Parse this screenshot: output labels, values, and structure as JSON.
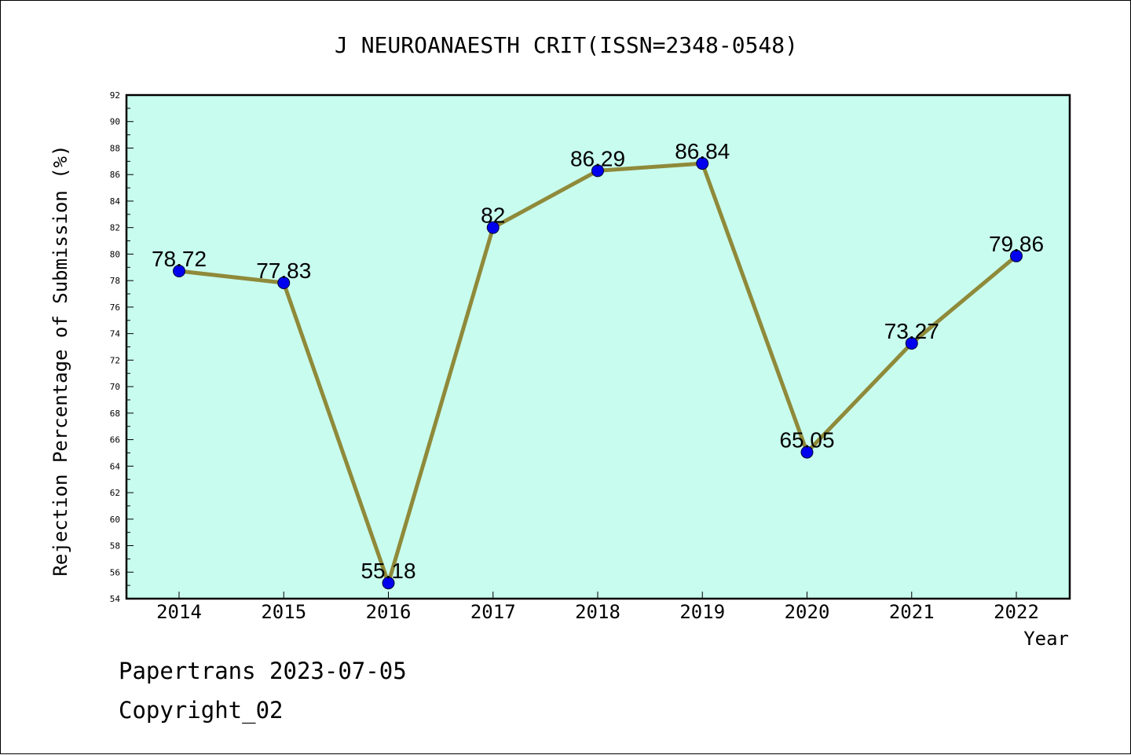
{
  "chart_data": {
    "type": "line",
    "title": "J NEUROANAESTH CRIT(ISSN=2348-0548)",
    "xlabel": "Year",
    "ylabel": "Rejection Percentage of Submission (%)",
    "categories": [
      "2014",
      "2015",
      "2016",
      "2017",
      "2018",
      "2019",
      "2020",
      "2021",
      "2022"
    ],
    "values": [
      78.72,
      77.83,
      55.18,
      82,
      86.29,
      86.84,
      65.05,
      73.27,
      79.86
    ],
    "value_labels": [
      "78.72",
      "77.83",
      "55.18",
      "82",
      "86.29",
      "86.84",
      "65.05",
      "73.27",
      "79.86"
    ],
    "ylim": [
      54,
      92
    ],
    "yticks": [
      "54",
      "56",
      "58",
      "60",
      "62",
      "64",
      "66",
      "68",
      "70",
      "72",
      "74",
      "76",
      "78",
      "80",
      "82",
      "84",
      "86",
      "88",
      "90",
      "92"
    ],
    "grid": false,
    "legend": "none",
    "colors": {
      "plot_background": "#c8fcee",
      "line": "#8f8a3a",
      "marker": "#0000ee",
      "axis": "#000000"
    }
  },
  "footer": {
    "source": "Papertrans 2023-07-05",
    "copyright": "Copyright_02"
  }
}
